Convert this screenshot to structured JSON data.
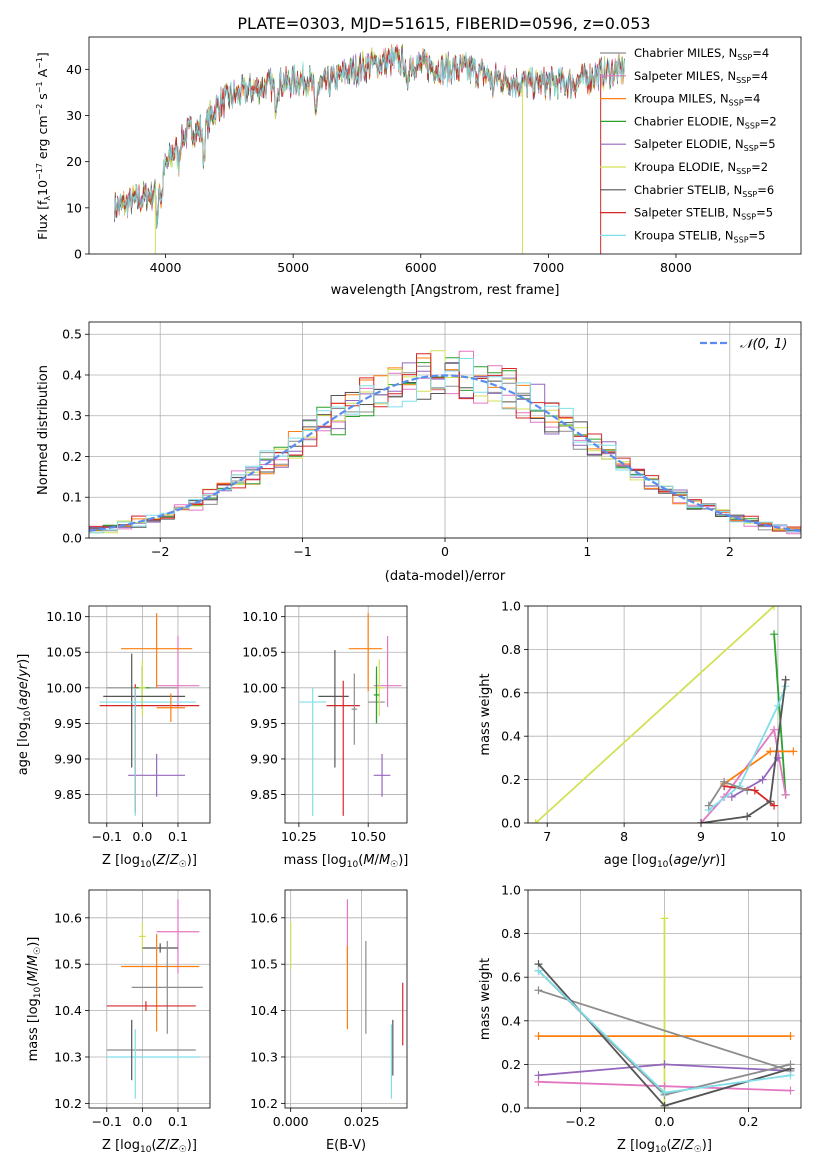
{
  "figure_title": "PLATE=0303, MJD=51615, FIBERID=0596, z=0.053",
  "colors": {
    "Chabrier MILES": "#8c8c8c",
    "Salpeter MILES": "#e377c2",
    "Kroupa MILES": "#ff7f0e",
    "Chabrier ELODIE": "#2ca02c",
    "Salpeter ELODIE": "#9467bd",
    "Kroupa ELODIE": "#d4e157",
    "Chabrier STELIB": "#555555",
    "Salpeter STELIB": "#d62728",
    "Kroupa STELIB": "#80deea",
    "normal_curve": "#5b8def"
  },
  "chart_data": [
    {
      "id": "spectrum",
      "type": "line",
      "title": "PLATE=0303, MJD=51615, FIBERID=0596, z=0.053",
      "xlabel": "wavelength [Angstrom, rest frame]",
      "ylabel": "Flux [f_λ 10^-17 erg cm^-2 s^-1 A^-1]",
      "xlim": [
        3400,
        8980
      ],
      "ylim": [
        0,
        47
      ],
      "xticks": [
        4000,
        5000,
        6000,
        7000,
        8000
      ],
      "yticks": [
        0,
        10,
        20,
        30,
        40
      ],
      "grid": false,
      "legend_position": "top-right",
      "series": [
        {
          "name": "Chabrier MILES",
          "nssp": "4"
        },
        {
          "name": "Salpeter MILES",
          "nssp": "4"
        },
        {
          "name": "Kroupa MILES",
          "nssp": "4"
        },
        {
          "name": "Chabrier ELODIE",
          "nssp": "2"
        },
        {
          "name": "Salpeter ELODIE",
          "nssp": "5"
        },
        {
          "name": "Kroupa ELODIE",
          "nssp": "2"
        },
        {
          "name": "Chabrier STELIB",
          "nssp": "6"
        },
        {
          "name": "Salpeter STELIB",
          "nssp": "5"
        },
        {
          "name": "Kroupa STELIB",
          "nssp": "5"
        }
      ],
      "continuum": {
        "x": [
          3600,
          3700,
          3800,
          3900,
          4000,
          4100,
          4200,
          4300,
          4400,
          4500,
          4700,
          4900,
          5100,
          5200,
          5400,
          5600,
          5800,
          6000,
          6200,
          6400,
          6600,
          6800,
          7000,
          7200,
          7400,
          7600
        ],
        "y": [
          10,
          11,
          12,
          13,
          19,
          24,
          27,
          27,
          32,
          34,
          36,
          37,
          38,
          36,
          39,
          41,
          42,
          41,
          40,
          40,
          38,
          37,
          37,
          37,
          39,
          40
        ]
      }
    },
    {
      "id": "residuals",
      "type": "histogram",
      "xlabel": "(data-model)/error",
      "ylabel": "Normed distribution",
      "xlim": [
        -2.5,
        2.5
      ],
      "ylim": [
        0,
        0.53
      ],
      "xticks": [
        -2,
        -1,
        0,
        1,
        2
      ],
      "yticks": [
        0.0,
        0.1,
        0.2,
        0.3,
        0.4,
        0.5
      ],
      "grid": true,
      "legend": [
        {
          "name": "N(0,1)",
          "style": "dashed"
        }
      ],
      "legend_position": "top-right",
      "bin_width": 0.1,
      "normal_curve": {
        "mean": 0,
        "sigma": 1
      }
    },
    {
      "id": "age_vs_Z",
      "type": "scatter_errorbars",
      "xlabel": "Z [log10(Z/Z☉)]",
      "ylabel": "age [log10(age/yr)]",
      "xlim": [
        -0.15,
        0.19
      ],
      "ylim": [
        9.81,
        10.115
      ],
      "xticks": [
        -0.1,
        0.0,
        0.1
      ],
      "yticks": [
        9.85,
        9.9,
        9.95,
        10.0,
        10.05,
        10.1
      ],
      "grid": true,
      "points": [
        {
          "series": "Chabrier MILES",
          "x": 0.0,
          "xerr": [
            0.1,
            0.1
          ],
          "y": 10.0,
          "yerr": [
            0.03,
            0.03
          ]
        },
        {
          "series": "Salpeter MILES",
          "x": 0.1,
          "xerr": [
            0.06,
            0.06
          ],
          "y": 10.003,
          "yerr": [
            0.03,
            0.07
          ]
        },
        {
          "series": "Kroupa MILES",
          "x": 0.04,
          "xerr": [
            0.1,
            0.1
          ],
          "y": 10.055,
          "yerr": [
            0.055,
            0.05
          ]
        },
        {
          "series": "Chabrier ELODIE",
          "x": 0.0,
          "xerr": [
            0.02,
            0.02
          ],
          "y": 10.0,
          "yerr": [
            0.03,
            0.03
          ]
        },
        {
          "series": "Salpeter ELODIE",
          "x": 0.04,
          "xerr": [
            0.08,
            0.08
          ],
          "y": 9.877,
          "yerr": [
            0.03,
            0.03
          ]
        },
        {
          "series": "Kroupa ELODIE",
          "x": 0.0,
          "xerr": [
            0.01,
            0.01
          ],
          "y": 10.0,
          "yerr": [
            0.04,
            0.04
          ]
        },
        {
          "series": "Chabrier STELIB",
          "x": -0.03,
          "xerr": [
            0.08,
            0.15
          ],
          "y": 9.988,
          "yerr": [
            0.1,
            0.06
          ]
        },
        {
          "series": "Salpeter STELIB",
          "x": -0.02,
          "xerr": [
            0.1,
            0.18
          ],
          "y": 9.975,
          "yerr": [
            0.15,
            0.03
          ]
        },
        {
          "series": "Kroupa STELIB",
          "x": -0.02,
          "xerr": [
            0.1,
            0.17
          ],
          "y": 9.98,
          "yerr": [
            0.16,
            0.02
          ]
        },
        {
          "series": "Kroupa MILES",
          "x": 0.08,
          "xerr": [
            0.04,
            0.04
          ],
          "y": 9.972,
          "yerr": [
            0.02,
            0.02
          ]
        }
      ]
    },
    {
      "id": "age_vs_mass",
      "type": "scatter_errorbars",
      "xlabel": "mass [log10(M/M☉)]",
      "xlim": [
        10.2,
        10.64
      ],
      "ylim": [
        9.81,
        10.115
      ],
      "xticks": [
        10.25,
        10.5
      ],
      "yticks": [
        9.85,
        9.9,
        9.95,
        10.0,
        10.05,
        10.1
      ],
      "grid": true,
      "points": [
        {
          "series": "Chabrier STELIB",
          "x": 10.38,
          "xerr": [
            0.06,
            0.05
          ],
          "y": 9.988,
          "yerr": [
            0.1,
            0.065
          ]
        },
        {
          "series": "Kroupa STELIB",
          "x": 10.3,
          "xerr": [
            0.05,
            0.05
          ],
          "y": 9.98,
          "yerr": [
            0.16,
            0.02
          ]
        },
        {
          "series": "Salpeter STELIB",
          "x": 10.41,
          "xerr": [
            0.06,
            0.06
          ],
          "y": 9.975,
          "yerr": [
            0.155,
            0.035
          ]
        },
        {
          "series": "Kroupa MILES",
          "x": 10.5,
          "xerr": [
            0.07,
            0.05
          ],
          "y": 10.055,
          "yerr": [
            0.06,
            0.05
          ]
        },
        {
          "series": "Salpeter MILES",
          "x": 10.57,
          "xerr": [
            0.05,
            0.05
          ],
          "y": 10.003,
          "yerr": [
            0.03,
            0.07
          ]
        },
        {
          "series": "Chabrier MILES",
          "x": 10.53,
          "xerr": [
            0.03,
            0.03
          ],
          "y": 9.98,
          "yerr": [
            0.03,
            0.04
          ]
        },
        {
          "series": "Kroupa ELODIE",
          "x": 10.54,
          "xerr": [
            0.02,
            0.02
          ],
          "y": 10.0,
          "yerr": [
            0.04,
            0.04
          ]
        },
        {
          "series": "Salpeter ELODIE",
          "x": 10.55,
          "xerr": [
            0.03,
            0.03
          ],
          "y": 9.877,
          "yerr": [
            0.03,
            0.03
          ]
        },
        {
          "series": "Chabrier ELODIE",
          "x": 10.53,
          "xerr": [
            0.01,
            0.01
          ],
          "y": 9.99,
          "yerr": [
            0.04,
            0.04
          ]
        },
        {
          "series": "Chabrier MILES",
          "x": 10.45,
          "xerr": [
            0.01,
            0.01
          ],
          "y": 9.97,
          "yerr": [
            0.05,
            0.05
          ]
        }
      ]
    },
    {
      "id": "sfh_age",
      "type": "line",
      "xlabel": "age [log10(age/yr)]",
      "ylabel": "mass weight",
      "xlim": [
        6.75,
        10.3
      ],
      "ylim": [
        0,
        1.0
      ],
      "xticks": [
        7,
        8,
        9,
        10
      ],
      "yticks": [
        0.0,
        0.2,
        0.4,
        0.6,
        0.8,
        1.0
      ],
      "grid": true,
      "series": [
        {
          "name": "Kroupa ELODIE",
          "x": [
            6.85,
            9.95
          ],
          "y": [
            0.0,
            1.0
          ]
        },
        {
          "name": "Chabrier ELODIE",
          "x": [
            9.95,
            10.1
          ],
          "y": [
            0.87,
            0.13
          ]
        },
        {
          "name": "Salpeter MILES",
          "x": [
            9.0,
            9.3,
            9.95,
            10.1
          ],
          "y": [
            0.0,
            0.12,
            0.43,
            0.13
          ]
        },
        {
          "name": "Kroupa MILES",
          "x": [
            9.3,
            9.9,
            10.2
          ],
          "y": [
            0.18,
            0.33,
            0.33
          ]
        },
        {
          "name": "Salpeter ELODIE",
          "x": [
            9.4,
            9.8,
            10.0
          ],
          "y": [
            0.12,
            0.2,
            0.3
          ]
        },
        {
          "name": "Salpeter STELIB",
          "x": [
            9.3,
            9.7,
            9.95
          ],
          "y": [
            0.17,
            0.15,
            0.08
          ]
        },
        {
          "name": "Kroupa STELIB",
          "x": [
            9.1,
            9.5,
            10.0,
            10.1
          ],
          "y": [
            0.06,
            0.17,
            0.54,
            0.63
          ]
        },
        {
          "name": "Chabrier STELIB",
          "x": [
            9.0,
            9.6,
            9.9,
            10.1
          ],
          "y": [
            0.0,
            0.03,
            0.1,
            0.66
          ]
        },
        {
          "name": "Chabrier MILES",
          "x": [
            9.1,
            9.3,
            9.6
          ],
          "y": [
            0.08,
            0.19,
            0.15
          ]
        }
      ]
    },
    {
      "id": "mass_vs_Z",
      "type": "scatter_errorbars",
      "xlabel": "Z [log10(Z/Z☉)]",
      "ylabel": "mass [log10(M/M☉)]",
      "xlim": [
        -0.15,
        0.19
      ],
      "ylim": [
        10.19,
        10.66
      ],
      "xticks": [
        -0.1,
        0.0,
        0.1
      ],
      "yticks": [
        10.2,
        10.3,
        10.4,
        10.5,
        10.6
      ],
      "grid": true,
      "points": [
        {
          "series": "Kroupa ELODIE",
          "x": 0.0,
          "xerr": [
            0.01,
            0.01
          ],
          "y": 10.56,
          "yerr": [
            0.03,
            0.03
          ]
        },
        {
          "series": "Salpeter MILES",
          "x": 0.1,
          "xerr": [
            0.06,
            0.06
          ],
          "y": 10.57,
          "yerr": [
            0.09,
            0.07
          ]
        },
        {
          "series": "Chabrier STELIB",
          "x": 0.05,
          "xerr": [
            0.05,
            0.05
          ],
          "y": 10.535,
          "yerr": [
            0.01,
            0.01
          ]
        },
        {
          "series": "Kroupa MILES",
          "x": 0.04,
          "xerr": [
            0.1,
            0.12
          ],
          "y": 10.495,
          "yerr": [
            0.14,
            0.07
          ]
        },
        {
          "series": "Chabrier MILES",
          "x": 0.07,
          "xerr": [
            0.1,
            0.1
          ],
          "y": 10.45,
          "yerr": [
            0.1,
            0.1
          ]
        },
        {
          "series": "Salpeter STELIB",
          "x": 0.01,
          "xerr": [
            0.11,
            0.14
          ],
          "y": 10.41,
          "yerr": [
            0.01,
            0.01
          ]
        },
        {
          "series": "Chabrier MILES",
          "x": -0.1,
          "xerr": [
            0.0,
            0.25
          ],
          "y": 10.315,
          "yerr": [
            0.0,
            0.0
          ]
        },
        {
          "series": "Kroupa STELIB",
          "x": -0.1,
          "xerr": [
            0.0,
            0.26
          ],
          "y": 10.3,
          "yerr": [
            0.0,
            0.0
          ]
        },
        {
          "series": "Chabrier STELIB",
          "x": -0.03,
          "xerr": [
            0.0,
            0.0
          ],
          "y": 10.32,
          "yerr": [
            0.07,
            0.06
          ]
        },
        {
          "series": "Kroupa STELIB",
          "x": -0.02,
          "xerr": [
            0.0,
            0.0
          ],
          "y": 10.3,
          "yerr": [
            0.09,
            0.06
          ]
        }
      ]
    },
    {
      "id": "mass_vs_ebv",
      "type": "scatter_errorbars",
      "xlabel": "E(B-V)",
      "xlim": [
        -0.002,
        0.041
      ],
      "ylim": [
        10.19,
        10.66
      ],
      "xticks": [
        0.0,
        0.025
      ],
      "xtick_labels": [
        "0.000",
        "0.025"
      ],
      "yticks": [
        10.2,
        10.3,
        10.4,
        10.5,
        10.6
      ],
      "grid": true,
      "points": [
        {
          "series": "Kroupa ELODIE",
          "x": 0.0,
          "xerr": [
            0.0,
            0.0
          ],
          "y": 10.54,
          "yerr": [
            0.05,
            0.05
          ]
        },
        {
          "series": "Salpeter MILES",
          "x": 0.02,
          "xerr": [
            0.0,
            0.0
          ],
          "y": 10.57,
          "yerr": [
            0.07,
            0.07
          ]
        },
        {
          "series": "Kroupa MILES",
          "x": 0.02,
          "xerr": [
            0.0,
            0.0
          ],
          "y": 10.45,
          "yerr": [
            0.09,
            0.09
          ]
        },
        {
          "series": "Chabrier MILES",
          "x": 0.0265,
          "xerr": [
            0.0,
            0.0
          ],
          "y": 10.45,
          "yerr": [
            0.1,
            0.1
          ]
        },
        {
          "series": "Chabrier STELIB",
          "x": 0.036,
          "xerr": [
            0.0,
            0.0
          ],
          "y": 10.32,
          "yerr": [
            0.06,
            0.06
          ]
        },
        {
          "series": "Kroupa STELIB",
          "x": 0.0355,
          "xerr": [
            0.0,
            0.0
          ],
          "y": 10.3,
          "yerr": [
            0.09,
            0.07
          ]
        },
        {
          "series": "Salpeter STELIB",
          "x": 0.0395,
          "xerr": [
            0.0,
            0.0
          ],
          "y": 10.395,
          "yerr": [
            0.07,
            0.065
          ]
        }
      ]
    },
    {
      "id": "sfh_Z",
      "type": "line",
      "xlabel": "Z [log10(Z/Z☉)]",
      "ylabel": "mass weight",
      "xlim": [
        -0.325,
        0.325
      ],
      "ylim": [
        0,
        1.0
      ],
      "xticks": [
        -0.2,
        0.0,
        0.2
      ],
      "yticks": [
        0.0,
        0.2,
        0.4,
        0.6,
        0.8,
        1.0
      ],
      "grid": true,
      "series": [
        {
          "name": "Kroupa ELODIE",
          "x": [
            0.0,
            0.0
          ],
          "y": [
            0.0,
            0.87
          ]
        },
        {
          "name": "Kroupa MILES",
          "x": [
            -0.3,
            0.3
          ],
          "y": [
            0.33,
            0.33
          ]
        },
        {
          "name": "Salpeter MILES",
          "x": [
            -0.3,
            0.0,
            0.3
          ],
          "y": [
            0.12,
            0.1,
            0.08
          ]
        },
        {
          "name": "Salpeter ELODIE",
          "x": [
            -0.3,
            0.0,
            0.3
          ],
          "y": [
            0.15,
            0.2,
            0.17
          ]
        },
        {
          "name": "Chabrier MILES",
          "x": [
            -0.3,
            0.3
          ],
          "y": [
            0.54,
            0.17
          ]
        },
        {
          "name": "Chabrier STELIB",
          "x": [
            -0.3,
            0.0,
            0.3
          ],
          "y": [
            0.66,
            0.01,
            0.18
          ]
        },
        {
          "name": "Chabrier MILES",
          "x": [
            -0.3,
            0.0,
            0.3
          ],
          "y": [
            0.63,
            0.06,
            0.2
          ]
        },
        {
          "name": "Kroupa STELIB",
          "x": [
            -0.3,
            0.0,
            0.3
          ],
          "y": [
            0.63,
            0.07,
            0.15
          ]
        }
      ]
    }
  ]
}
